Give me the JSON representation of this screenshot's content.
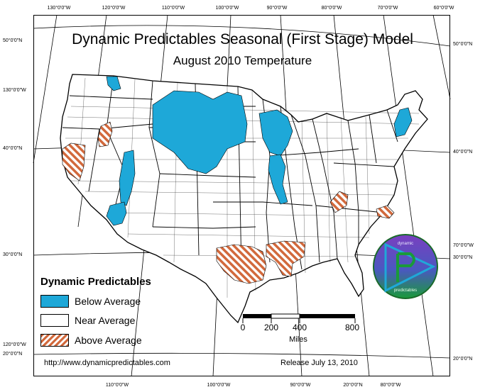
{
  "title": "Dynamic Predictables Seasonal (First Stage) Model",
  "subtitle": "August 2010 Temperature",
  "graticule": {
    "top": [
      "130°0'0\"W",
      "120°0'0\"W",
      "110°0'0\"W",
      "100°0'0\"W",
      "90°0'0\"W",
      "80°0'0\"W",
      "70°0'0\"W",
      "60°0'0\"W"
    ],
    "bottom": [
      "110°0'0\"W",
      "100°0'0\"W",
      "90°0'0\"W",
      "20°0'0\"N",
      "80°0'0\"W"
    ],
    "left": [
      "50°0'0\"N",
      "130°0'0\"W",
      "40°0'0\"N",
      "30°0'0\"N",
      "120°0'0\"W",
      "20°0'0\"N"
    ],
    "right": [
      "50°0'0\"N",
      "40°0'0\"N",
      "70°0'0\"W",
      "30°0'0\"N",
      "20°0'0\"N"
    ]
  },
  "legend": {
    "title": "Dynamic Predictables",
    "items": [
      {
        "label": "Below Average",
        "color": "#1ea8d8",
        "pattern": "solid"
      },
      {
        "label": "Near Average",
        "color": "#ffffff",
        "pattern": "solid"
      },
      {
        "label": "Above Average",
        "color": "#d2693c",
        "pattern": "diagonal-hatch"
      }
    ]
  },
  "scale_bar": {
    "labels": [
      "0",
      "200",
      "400",
      "800"
    ],
    "units": "Miles"
  },
  "logo": {
    "top_text": "dynamic",
    "bottom_text": "predictables",
    "colors": [
      "#6a2fb0",
      "#1a9a3a",
      "#1fa8d8"
    ]
  },
  "footer": {
    "url": "http://www.dynamicpredictables.com",
    "release": "Release July 13, 2010"
  },
  "colors": {
    "below_average": "#1ea8d8",
    "above_average_stripe": "#d2693c"
  }
}
